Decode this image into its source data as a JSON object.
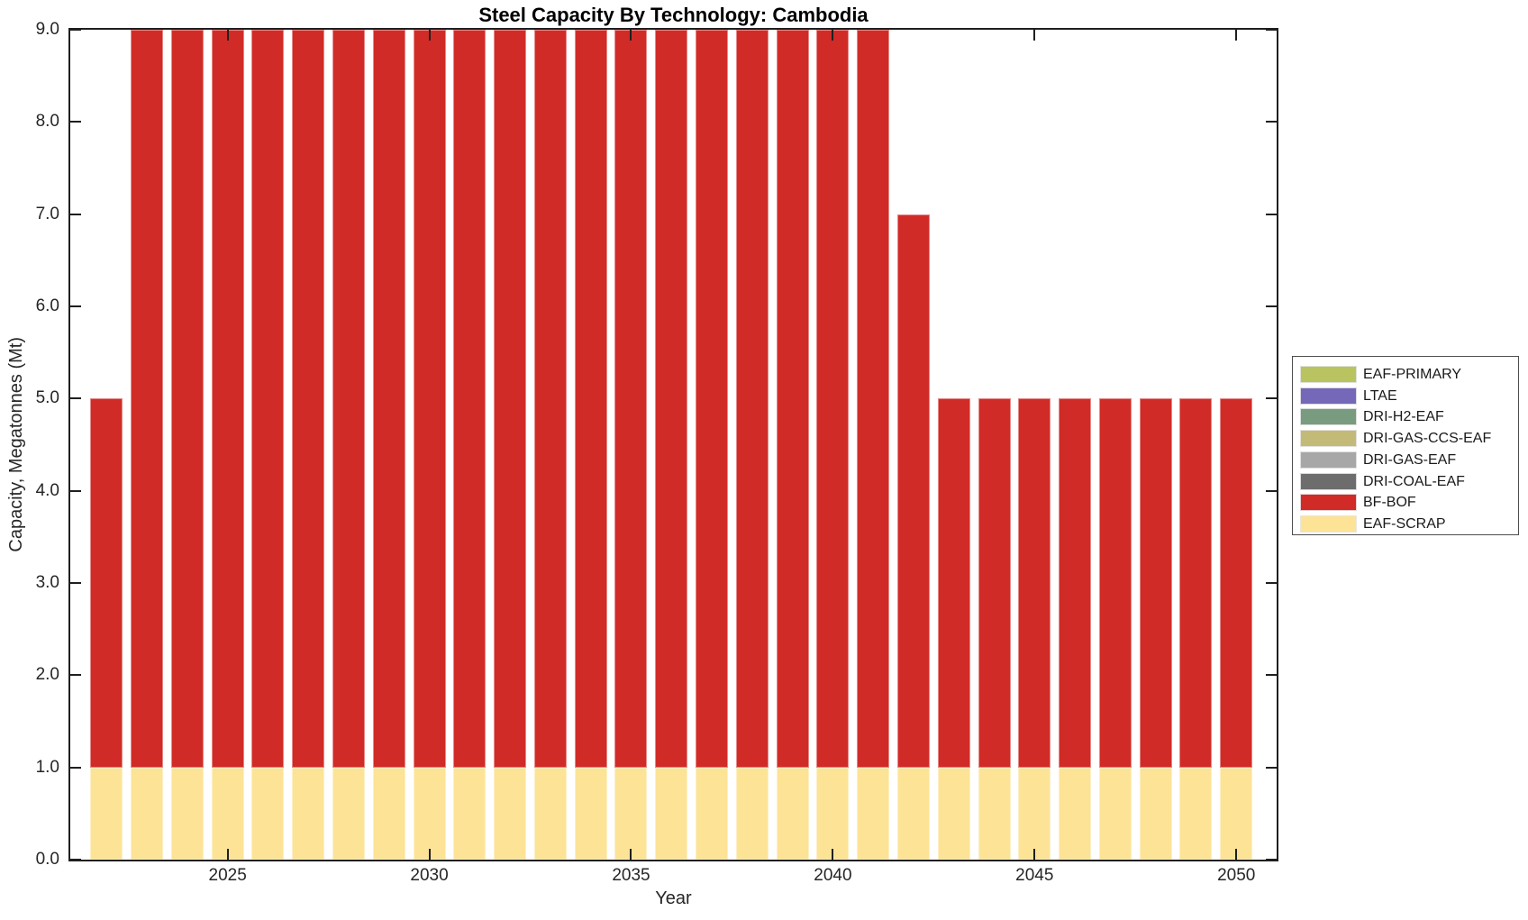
{
  "chart_data": {
    "type": "bar",
    "stacked": true,
    "title": "Steel Capacity By Technology: Cambodia",
    "xlabel": "Year",
    "ylabel": "Capacity, Megatonnes (Mt)",
    "ylim": [
      0,
      9
    ],
    "yticks": [
      0,
      1,
      2,
      3,
      4,
      5,
      6,
      7,
      8,
      9
    ],
    "ytick_labels": [
      "0.0",
      "1.0",
      "2.0",
      "3.0",
      "4.0",
      "5.0",
      "6.0",
      "7.0",
      "8.0",
      "9.0"
    ],
    "xlim": [
      2021.1,
      2051.0
    ],
    "xticks": [
      2025,
      2030,
      2035,
      2040,
      2045,
      2050
    ],
    "grid": false,
    "legend_position": "outside-right",
    "frame_color": "#1f1f1f",
    "text_color": "#262626",
    "years": [
      2022,
      2023,
      2024,
      2025,
      2026,
      2027,
      2028,
      2029,
      2030,
      2031,
      2032,
      2033,
      2034,
      2035,
      2036,
      2037,
      2038,
      2039,
      2040,
      2041,
      2042,
      2043,
      2044,
      2045,
      2046,
      2047,
      2048,
      2049,
      2050
    ],
    "series": [
      {
        "name": "EAF-SCRAP",
        "color": "#fde396",
        "values": [
          1,
          1,
          1,
          1,
          1,
          1,
          1,
          1,
          1,
          1,
          1,
          1,
          1,
          1,
          1,
          1,
          1,
          1,
          1,
          1,
          1,
          1,
          1,
          1,
          1,
          1,
          1,
          1,
          1
        ]
      },
      {
        "name": "BF-BOF",
        "color": "#d12b27",
        "values": [
          4,
          8,
          8,
          8,
          8,
          8,
          8,
          8,
          8,
          8,
          8,
          8,
          8,
          8,
          8,
          8,
          8,
          8,
          8,
          8,
          6,
          4,
          4,
          4,
          4,
          4,
          4,
          4,
          4
        ]
      },
      {
        "name": "DRI-COAL-EAF",
        "color": "#6d6d6d",
        "values": [
          0,
          0,
          0,
          0,
          0,
          0,
          0,
          0,
          0,
          0,
          0,
          0,
          0,
          0,
          0,
          0,
          0,
          0,
          0,
          0,
          0,
          0,
          0,
          0,
          0,
          0,
          0,
          0,
          0
        ]
      },
      {
        "name": "DRI-GAS-EAF",
        "color": "#a7a7a7",
        "values": [
          0,
          0,
          0,
          0,
          0,
          0,
          0,
          0,
          0,
          0,
          0,
          0,
          0,
          0,
          0,
          0,
          0,
          0,
          0,
          0,
          0,
          0,
          0,
          0,
          0,
          0,
          0,
          0,
          0
        ]
      },
      {
        "name": "DRI-GAS-CCS-EAF",
        "color": "#c4ba78",
        "values": [
          0,
          0,
          0,
          0,
          0,
          0,
          0,
          0,
          0,
          0,
          0,
          0,
          0,
          0,
          0,
          0,
          0,
          0,
          0,
          0,
          0,
          0,
          0,
          0,
          0,
          0,
          0,
          0,
          0
        ]
      },
      {
        "name": "DRI-H2-EAF",
        "color": "#799b80",
        "values": [
          0,
          0,
          0,
          0,
          0,
          0,
          0,
          0,
          0,
          0,
          0,
          0,
          0,
          0,
          0,
          0,
          0,
          0,
          0,
          0,
          0,
          0,
          0,
          0,
          0,
          0,
          0,
          0,
          0
        ]
      },
      {
        "name": "LTAE",
        "color": "#7568b8",
        "values": [
          0,
          0,
          0,
          0,
          0,
          0,
          0,
          0,
          0,
          0,
          0,
          0,
          0,
          0,
          0,
          0,
          0,
          0,
          0,
          0,
          0,
          0,
          0,
          0,
          0,
          0,
          0,
          0,
          0
        ]
      },
      {
        "name": "EAF-PRIMARY",
        "color": "#b9c35f",
        "values": [
          0,
          0,
          0,
          0,
          0,
          0,
          0,
          0,
          0,
          0,
          0,
          0,
          0,
          0,
          0,
          0,
          0,
          0,
          0,
          0,
          0,
          0,
          0,
          0,
          0,
          0,
          0,
          0,
          0
        ]
      }
    ],
    "legend": [
      "EAF-PRIMARY",
      "LTAE",
      "DRI-H2-EAF",
      "DRI-GAS-CCS-EAF",
      "DRI-GAS-EAF",
      "DRI-COAL-EAF",
      "BF-BOF",
      "EAF-SCRAP"
    ]
  }
}
